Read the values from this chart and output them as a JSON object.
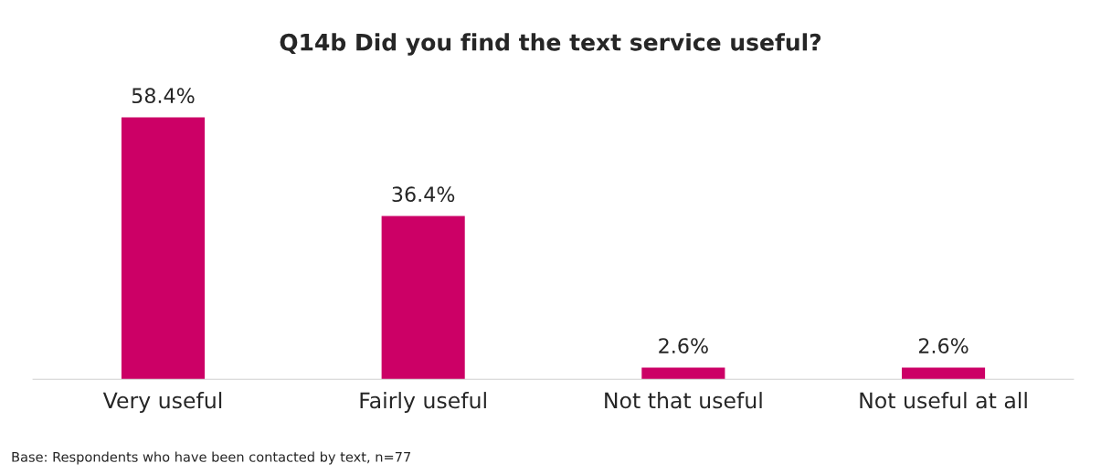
{
  "chart_data": {
    "type": "bar",
    "title": "Q14b Did you find the text service useful?",
    "categories": [
      "Very useful",
      "Fairly useful",
      "Not that useful",
      "Not useful at all"
    ],
    "values": [
      58.4,
      36.4,
      2.6,
      2.6
    ],
    "value_labels": [
      "58.4%",
      "36.4%",
      "2.6%",
      "2.6%"
    ],
    "color": "#cc0066",
    "grid": false,
    "legend": false,
    "annotations": [
      "Base: Respondents who have been contacted by text, n=77"
    ]
  }
}
